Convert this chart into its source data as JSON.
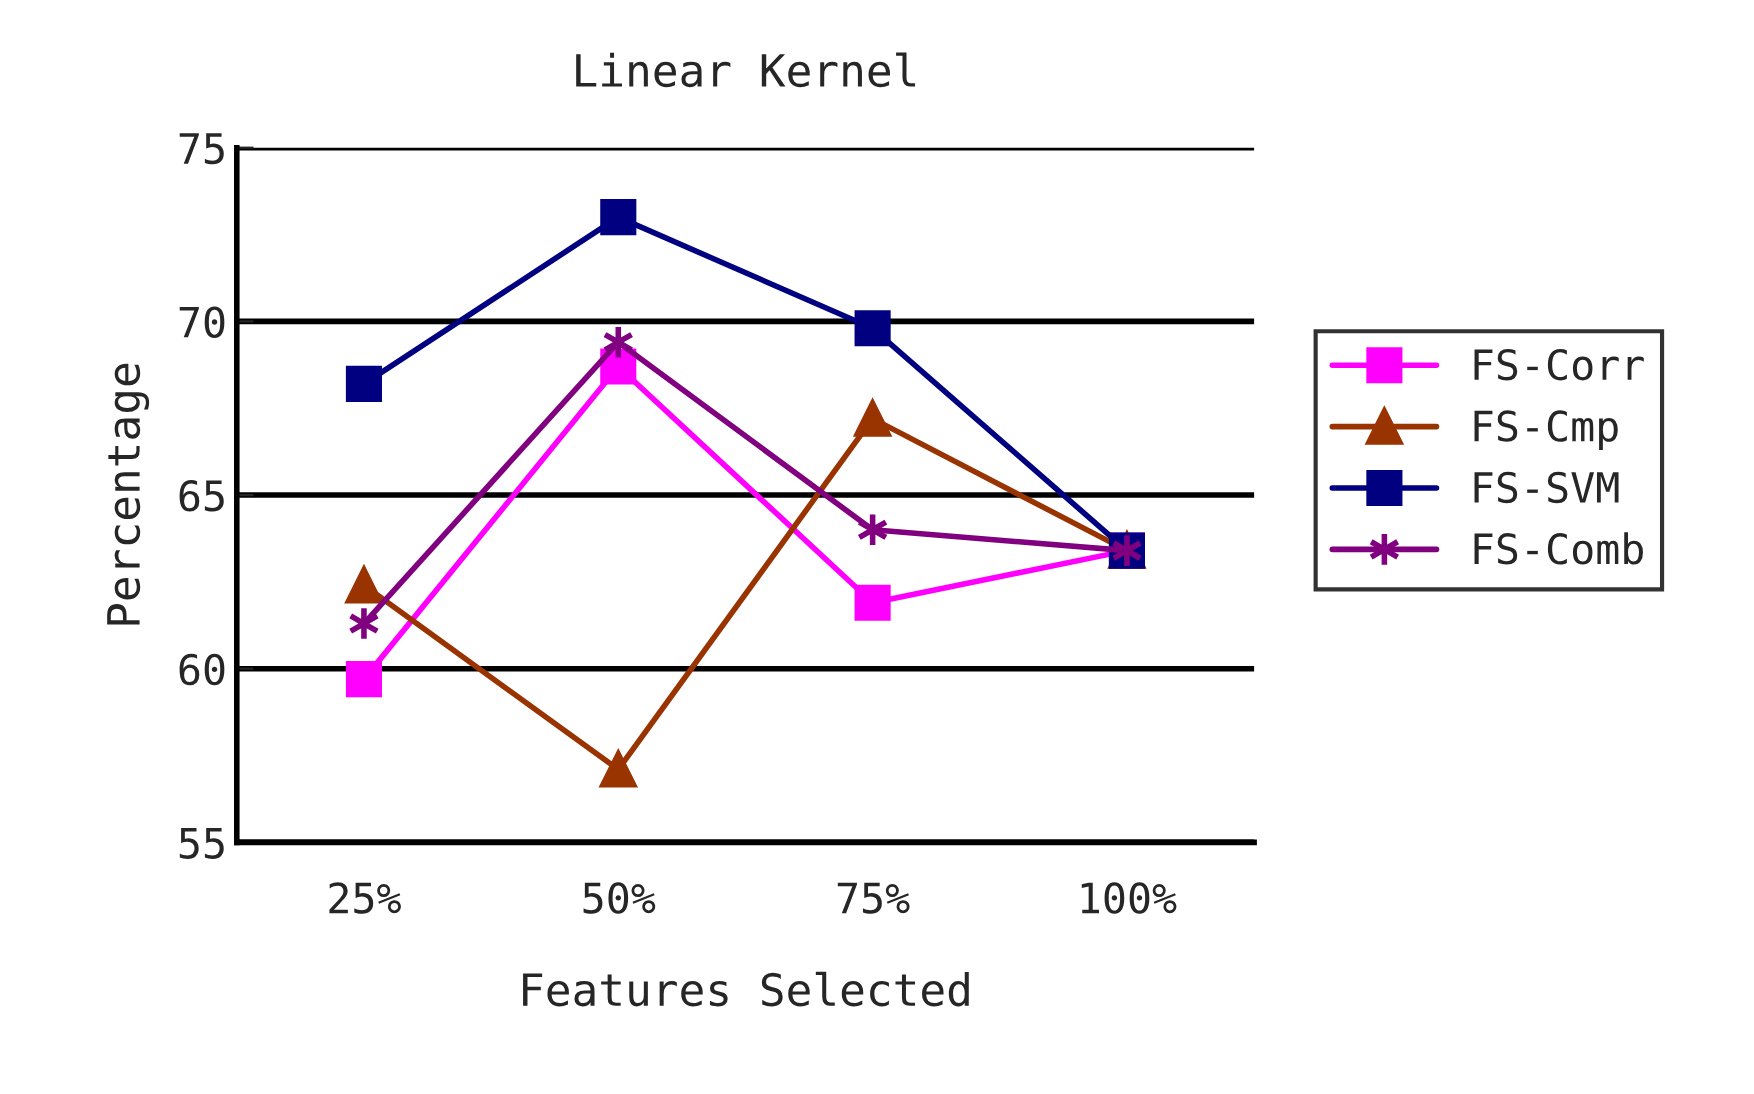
{
  "chart_data": {
    "type": "line",
    "title": "Linear Kernel",
    "xlabel": "Features Selected",
    "ylabel": "Percentage",
    "categories": [
      "25%",
      "50%",
      "75%",
      "100%"
    ],
    "series": [
      {
        "name": "FS-Corr",
        "color": "#ff00ff",
        "marker": "square",
        "values": [
          59.7,
          68.7,
          61.9,
          63.4
        ]
      },
      {
        "name": "FS-Cmp",
        "color": "#993300",
        "marker": "triangle",
        "values": [
          62.4,
          57.1,
          67.2,
          63.4
        ]
      },
      {
        "name": "FS-SVM",
        "color": "#000080",
        "marker": "square",
        "values": [
          68.2,
          73.0,
          69.8,
          63.4
        ]
      },
      {
        "name": "FS-Comb",
        "color": "#800080",
        "marker": "cross",
        "values": [
          61.3,
          69.4,
          64.0,
          63.4
        ]
      }
    ],
    "ylim": [
      55,
      75
    ],
    "yticks": [
      55,
      60,
      65,
      70,
      75
    ],
    "grid": "y",
    "legend": "right"
  }
}
